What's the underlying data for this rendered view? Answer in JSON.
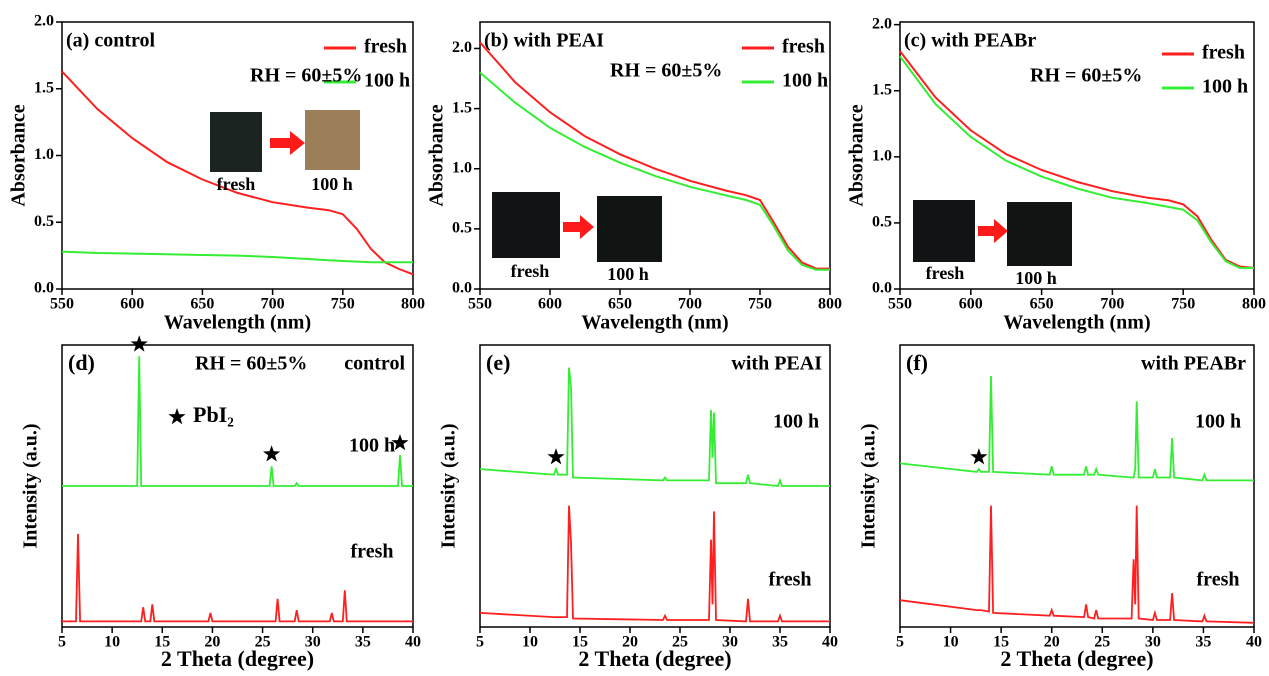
{
  "chart_data": [
    {
      "type": "line",
      "title": "(a) control",
      "xlabel": "Wavelength (nm)",
      "ylabel": "Absorbance",
      "annotations": [
        "RH = 60±5%"
      ],
      "x": [
        550,
        575,
        600,
        625,
        650,
        675,
        700,
        725,
        740,
        750,
        760,
        770,
        780,
        790,
        800
      ],
      "series": [
        {
          "name": "fresh",
          "color": "#ff1f1f",
          "values": [
            1.63,
            1.35,
            1.13,
            0.95,
            0.82,
            0.72,
            0.65,
            0.61,
            0.59,
            0.56,
            0.45,
            0.3,
            0.2,
            0.15,
            0.11
          ]
        },
        {
          "name": "100 h",
          "color": "#33ee33",
          "values": [
            0.28,
            0.27,
            0.265,
            0.26,
            0.255,
            0.25,
            0.24,
            0.225,
            0.215,
            0.21,
            0.205,
            0.2,
            0.2,
            0.2,
            0.2
          ]
        }
      ],
      "xlim": [
        550,
        800
      ],
      "xticks": [
        550,
        600,
        650,
        700,
        750,
        800
      ],
      "ylim": [
        0,
        2.0
      ],
      "yticks": [
        {
          "value": 0,
          "label": "0.0"
        },
        {
          "value": 0.5,
          "label": "0.5"
        },
        {
          "value": 1,
          "label": "1.0"
        },
        {
          "value": 1.5,
          "label": "1.5"
        },
        {
          "value": 2,
          "label": "2.0"
        }
      ]
    },
    {
      "type": "line",
      "title": "(b) with PEAI",
      "xlabel": "Wavelength (nm)",
      "ylabel": "Absorbance",
      "annotations": [
        "RH = 60±5%"
      ],
      "x": [
        550,
        575,
        600,
        625,
        650,
        675,
        700,
        725,
        740,
        750,
        760,
        770,
        780,
        790,
        800
      ],
      "series": [
        {
          "name": "fresh",
          "color": "#ff1f1f",
          "values": [
            2.05,
            1.72,
            1.47,
            1.27,
            1.12,
            1.0,
            0.9,
            0.82,
            0.78,
            0.74,
            0.55,
            0.35,
            0.22,
            0.17,
            0.17
          ]
        },
        {
          "name": "100 h",
          "color": "#33ee33",
          "values": [
            1.8,
            1.55,
            1.34,
            1.18,
            1.05,
            0.94,
            0.85,
            0.78,
            0.74,
            0.7,
            0.52,
            0.32,
            0.2,
            0.16,
            0.16
          ]
        }
      ],
      "xlim": [
        550,
        800
      ],
      "xticks": [
        550,
        600,
        650,
        700,
        750,
        800
      ],
      "ylim": [
        0,
        2.22
      ],
      "yticks": [
        {
          "value": 0,
          "label": "0.0"
        },
        {
          "value": 0.5,
          "label": "0.5"
        },
        {
          "value": 1,
          "label": "1.0"
        },
        {
          "value": 1.5,
          "label": "1.5"
        },
        {
          "value": 2,
          "label": "2.0"
        }
      ]
    },
    {
      "type": "line",
      "title": "(c) with PEABr",
      "xlabel": "Wavelength (nm)",
      "ylabel": "Absorbance",
      "annotations": [
        "RH = 60±5%"
      ],
      "x": [
        550,
        575,
        600,
        625,
        650,
        675,
        700,
        725,
        740,
        750,
        760,
        770,
        780,
        790,
        800
      ],
      "series": [
        {
          "name": "fresh",
          "color": "#ff1f1f",
          "values": [
            1.8,
            1.45,
            1.2,
            1.02,
            0.9,
            0.81,
            0.74,
            0.69,
            0.67,
            0.64,
            0.55,
            0.37,
            0.22,
            0.17,
            0.16
          ]
        },
        {
          "name": "100 h",
          "color": "#33ee33",
          "values": [
            1.76,
            1.4,
            1.15,
            0.97,
            0.85,
            0.76,
            0.69,
            0.65,
            0.62,
            0.6,
            0.52,
            0.35,
            0.21,
            0.16,
            0.16
          ]
        }
      ],
      "xlim": [
        550,
        800
      ],
      "xticks": [
        550,
        600,
        650,
        700,
        750,
        800
      ],
      "ylim": [
        0,
        2.02
      ],
      "yticks": [
        {
          "value": 0,
          "label": "0.0"
        },
        {
          "value": 0.5,
          "label": "0.5"
        },
        {
          "value": 1,
          "label": "1.0"
        },
        {
          "value": 1.5,
          "label": "1.5"
        },
        {
          "value": 2,
          "label": "2.0"
        }
      ]
    },
    {
      "type": "line",
      "panel_label": "(d)",
      "title": "control",
      "xlabel": "2 Theta (degree)",
      "ylabel": "Intensity (a.u.)",
      "annotations": [
        "RH = 60±5%",
        "PbI₂"
      ],
      "pbi2_peaks": [
        12.7,
        25.9,
        38.7
      ],
      "x": [
        5,
        6.4,
        6.6,
        6.8,
        12.5,
        12.7,
        12.9,
        13.1,
        13.3,
        13.8,
        14.0,
        14.2,
        19.6,
        19.8,
        20.0,
        25.7,
        25.9,
        26.1,
        26.3,
        26.5,
        26.7,
        28.2,
        28.4,
        28.6,
        31.7,
        31.9,
        32.1,
        33.0,
        33.2,
        33.4,
        38.5,
        38.7,
        38.9,
        40
      ],
      "series": [
        {
          "name": "fresh",
          "color": "#ff1f1f",
          "values": [
            2,
            2,
            33,
            2,
            2,
            2,
            2,
            7,
            2,
            2,
            8,
            2,
            2,
            5,
            2,
            2,
            2,
            2,
            2,
            10,
            2,
            2,
            6,
            2,
            2,
            5,
            2,
            2,
            13,
            2,
            2,
            2,
            2,
            2
          ]
        },
        {
          "name": "100 h",
          "color": "#33ee33",
          "values": [
            50,
            50,
            50,
            50,
            50,
            96,
            50,
            50,
            50,
            50,
            50,
            50,
            50,
            50,
            50,
            50,
            57,
            50,
            50,
            50,
            50,
            50,
            51,
            50,
            50,
            50,
            50,
            50,
            50,
            50,
            50,
            61,
            50,
            50
          ]
        }
      ],
      "xlim": [
        5,
        40
      ],
      "xticks": [
        5,
        10,
        15,
        20,
        25,
        30,
        35,
        40
      ],
      "ylim": [
        0,
        100
      ]
    },
    {
      "type": "line",
      "panel_label": "(e)",
      "title": "with PEAI",
      "xlabel": "2 Theta (degree)",
      "ylabel": "Intensity (a.u.)",
      "pbi2_peaks": [
        12.6
      ],
      "x": [
        5,
        12.4,
        12.6,
        12.8,
        13.7,
        13.9,
        14.1,
        14.3,
        23.3,
        23.5,
        23.7,
        27.9,
        28.1,
        28.25,
        28.4,
        28.6,
        31.6,
        31.8,
        32.0,
        34.8,
        35.0,
        35.2,
        40
      ],
      "series": [
        {
          "name": "fresh",
          "color": "#ff1f1f",
          "values": [
            5,
            3.5,
            3.5,
            3.5,
            3.5,
            43,
            30,
            3,
            2.5,
            4,
            2.5,
            2.5,
            31,
            8,
            41,
            2.5,
            2,
            10,
            2,
            2,
            4,
            2,
            2
          ]
        },
        {
          "name": "100 h",
          "color": "#33ee33",
          "values": [
            56,
            54,
            56,
            54,
            54,
            92,
            85,
            53,
            52,
            53,
            52,
            52,
            77,
            60,
            76,
            51,
            51,
            54,
            51,
            50,
            52,
            50,
            50
          ]
        }
      ],
      "xlim": [
        5,
        40
      ],
      "xticks": [
        5,
        10,
        15,
        20,
        25,
        30,
        35,
        40
      ],
      "ylim": [
        0,
        100
      ]
    },
    {
      "type": "line",
      "panel_label": "(f)",
      "title": "with PEABr",
      "xlabel": "2 Theta (degree)",
      "ylabel": "Intensity (a.u.)",
      "pbi2_peaks": [
        12.8
      ],
      "x": [
        5,
        12.6,
        12.8,
        13.0,
        13.8,
        14.0,
        14.2,
        19.8,
        20.0,
        20.2,
        23.2,
        23.4,
        23.6,
        24.2,
        24.4,
        24.6,
        27.9,
        28.1,
        28.25,
        28.4,
        28.6,
        30.0,
        30.2,
        30.4,
        31.7,
        31.9,
        32.1,
        34.9,
        35.1,
        35.3,
        40
      ],
      "series": [
        {
          "name": "fresh",
          "color": "#ff1f1f",
          "values": [
            9.5,
            6,
            6,
            6,
            5.5,
            43,
            5,
            4,
            6,
            4,
            3.5,
            8,
            3.5,
            3,
            6,
            3,
            3,
            24,
            8,
            43,
            3,
            2.5,
            5,
            2.5,
            2.5,
            12,
            2.5,
            2,
            4,
            2,
            1.5
          ]
        },
        {
          "name": "100 h",
          "color": "#33ee33",
          "values": [
            58,
            55,
            56,
            55,
            55,
            89,
            55,
            54,
            57,
            54,
            54,
            57,
            54,
            54,
            56,
            54,
            53,
            53,
            56,
            80,
            53,
            53,
            56,
            53,
            53,
            67,
            53,
            52,
            54,
            52,
            52
          ]
        }
      ],
      "xlim": [
        5,
        40
      ],
      "xticks": [
        5,
        10,
        15,
        20,
        25,
        30,
        35,
        40
      ],
      "ylim": [
        0,
        100
      ]
    }
  ]
}
